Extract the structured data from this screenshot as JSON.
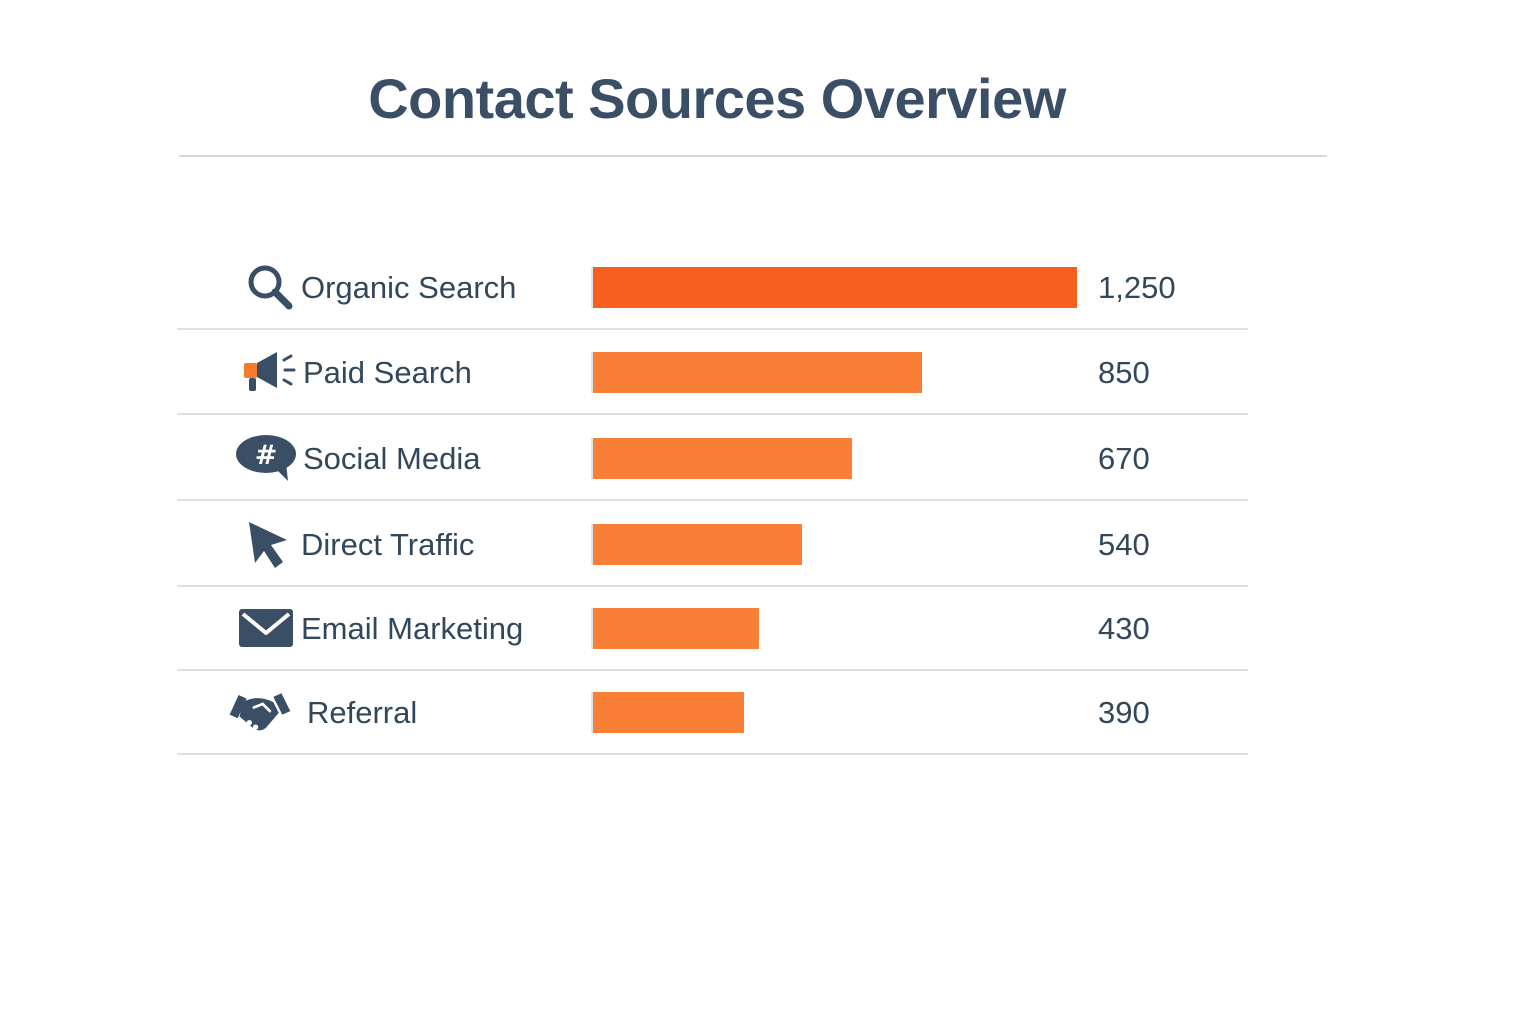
{
  "title": "Contact Sources Overview",
  "colors": {
    "bar": "#fa7f36",
    "bar_top": "#f75f1c",
    "text": "#33475b",
    "icon": "#3a4f66",
    "icon_accent": "#f47a2c"
  },
  "chart_data": {
    "type": "bar",
    "orientation": "horizontal",
    "title": "Contact Sources Overview",
    "categories": [
      "Organic Search",
      "Paid Search",
      "Social Media",
      "Direct Traffic",
      "Email Marketing",
      "Referral"
    ],
    "values": [
      1250,
      850,
      670,
      540,
      430,
      390
    ],
    "value_labels": [
      "1,250",
      "850",
      "670",
      "540",
      "430",
      "390"
    ],
    "icons": [
      "search-icon",
      "megaphone-icon",
      "chat-hashtag-icon",
      "cursor-icon",
      "envelope-icon",
      "handshake-icon"
    ],
    "xlim": [
      0,
      1250
    ],
    "grid": false,
    "legend": false
  }
}
